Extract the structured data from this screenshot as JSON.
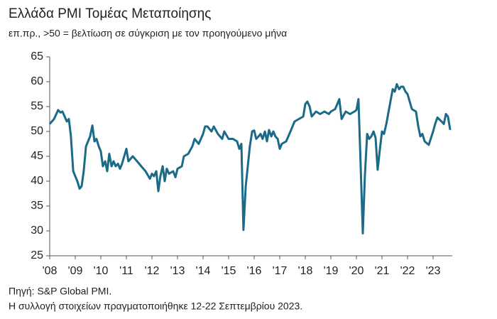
{
  "chart_data": {
    "type": "line",
    "title": "Ελλάδα PMI Τομέας Μεταποίησης",
    "subtitle": "επ.πρ., >50 = βελτίωση σε σύγκριση με τον προηγούμενο μήνα",
    "notes": [
      "Πηγή: S&P Global PMI.",
      "Η συλλογή στοιχείων πραγματοποιήθηκε 12-22 Σεπτεμβρίου 2023."
    ],
    "x": [
      2008.0,
      2008.17,
      2008.33,
      2008.42,
      2008.5,
      2008.67,
      2008.75,
      2008.83,
      2008.92,
      2009.08,
      2009.17,
      2009.25,
      2009.33,
      2009.42,
      2009.58,
      2009.67,
      2009.75,
      2009.83,
      2009.92,
      2010.0,
      2010.08,
      2010.17,
      2010.25,
      2010.33,
      2010.42,
      2010.5,
      2010.58,
      2010.67,
      2010.75,
      2010.83,
      2011.0,
      2011.08,
      2011.25,
      2011.42,
      2011.58,
      2011.75,
      2011.92,
      2012.0,
      2012.08,
      2012.17,
      2012.25,
      2012.33,
      2012.42,
      2012.5,
      2012.58,
      2012.67,
      2012.83,
      2012.92,
      2013.0,
      2013.17,
      2013.25,
      2013.42,
      2013.58,
      2013.67,
      2013.83,
      2014.0,
      2014.08,
      2014.17,
      2014.33,
      2014.42,
      2014.58,
      2014.75,
      2014.83,
      2015.0,
      2015.17,
      2015.33,
      2015.42,
      2015.5,
      2015.58,
      2015.67,
      2015.83,
      2015.92,
      2016.0,
      2016.08,
      2016.17,
      2016.25,
      2016.33,
      2016.42,
      2016.5,
      2016.58,
      2016.67,
      2016.75,
      2016.83,
      2016.92,
      2017.0,
      2017.08,
      2017.25,
      2017.42,
      2017.58,
      2017.75,
      2017.92,
      2018.0,
      2018.08,
      2018.17,
      2018.25,
      2018.42,
      2018.58,
      2018.75,
      2018.92,
      2019.0,
      2019.17,
      2019.33,
      2019.42,
      2019.58,
      2019.75,
      2019.92,
      2020.0,
      2020.08,
      2020.17,
      2020.25,
      2020.33,
      2020.42,
      2020.5,
      2020.58,
      2020.67,
      2020.75,
      2020.83,
      2020.92,
      2021.0,
      2021.08,
      2021.17,
      2021.33,
      2021.42,
      2021.5,
      2021.58,
      2021.67,
      2021.75,
      2021.83,
      2021.92,
      2022.0,
      2022.17,
      2022.33,
      2022.42,
      2022.5,
      2022.58,
      2022.67,
      2022.83,
      2023.0,
      2023.08,
      2023.17,
      2023.33,
      2023.42,
      2023.5,
      2023.58,
      2023.67
    ],
    "series": [
      {
        "color": "#1b6a87",
        "values": [
          51.5,
          52.5,
          54.3,
          53.8,
          54,
          52,
          52.5,
          49,
          42,
          40,
          38.5,
          39,
          42,
          47,
          49,
          51.2,
          48,
          48.5,
          47,
          46,
          43,
          44,
          42,
          45.5,
          43,
          44,
          43,
          43.5,
          42.5,
          43.5,
          46.5,
          44,
          45,
          44,
          43,
          42,
          40.5,
          41.5,
          41,
          42,
          38,
          41,
          43,
          40,
          42.5,
          41.5,
          42,
          40.8,
          42.5,
          43,
          45,
          45.5,
          47,
          48.5,
          47.5,
          49.5,
          51,
          51,
          50,
          51,
          49.5,
          48.5,
          50,
          48.5,
          48.5,
          48,
          46.5,
          47.5,
          30.2,
          39,
          47,
          50,
          50.2,
          48.5,
          49,
          49.5,
          48.5,
          50,
          48,
          50.3,
          49,
          50,
          49,
          48.5,
          46.5,
          47.5,
          48,
          50,
          52,
          52.5,
          53,
          55.5,
          56,
          55,
          53,
          54,
          53.5,
          54,
          53.5,
          54,
          54.5,
          56.5,
          52.5,
          54,
          53.5,
          54,
          54.3,
          56.5,
          42.5,
          29.5,
          41,
          49.5,
          48.5,
          49,
          50,
          48.7,
          42.3,
          46.5,
          50,
          49.5,
          51.5,
          56,
          58.5,
          58,
          59.5,
          58.5,
          59,
          59,
          58,
          57.5,
          54.5,
          54,
          51,
          49,
          49.5,
          48,
          47.3,
          50,
          51.5,
          52.8,
          52,
          51.5,
          53.5,
          53,
          50.3
        ]
      }
    ],
    "xlim": [
      2008,
      2023.75
    ],
    "xticks": [
      {
        "value": 2008,
        "label": "'08"
      },
      {
        "value": 2009,
        "label": "'09"
      },
      {
        "value": 2010,
        "label": "'10"
      },
      {
        "value": 2011,
        "label": "'11"
      },
      {
        "value": 2012,
        "label": "'12"
      },
      {
        "value": 2013,
        "label": "'13"
      },
      {
        "value": 2014,
        "label": "'14"
      },
      {
        "value": 2015,
        "label": "'15"
      },
      {
        "value": 2016,
        "label": "'16"
      },
      {
        "value": 2017,
        "label": "'17"
      },
      {
        "value": 2018,
        "label": "'18"
      },
      {
        "value": 2019,
        "label": "'19"
      },
      {
        "value": 2020,
        "label": "'20"
      },
      {
        "value": 2021,
        "label": "'21"
      },
      {
        "value": 2022,
        "label": "'22"
      },
      {
        "value": 2023,
        "label": "'23"
      }
    ],
    "ylim": [
      25,
      65
    ],
    "yticks": [
      25,
      30,
      35,
      40,
      45,
      50,
      55,
      60,
      65
    ],
    "grid": false
  }
}
